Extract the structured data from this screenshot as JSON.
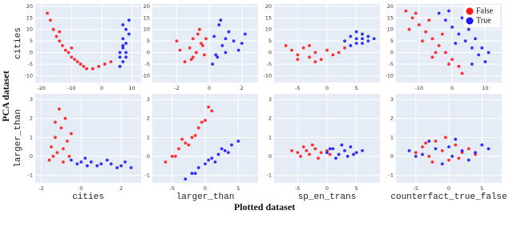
{
  "figure": {
    "xlabel": "Plotted dataset",
    "ylabel": "PCA dataset"
  },
  "chart_data": [
    {
      "type": "scatter",
      "ylabel": "cities",
      "xlim": [
        -22,
        13
      ],
      "ylim": [
        -13,
        21
      ],
      "xticks": [
        -20,
        -10,
        0,
        10
      ],
      "yticks": [
        -10,
        -5,
        0,
        5,
        10,
        15,
        20
      ],
      "grid": true,
      "series": [
        {
          "color": "#ff1a1a",
          "x": [
            -18,
            -17,
            -16,
            -15,
            -14,
            -13,
            -12,
            -11,
            -10,
            -9,
            -8,
            -7,
            -6,
            -5,
            -3,
            -1,
            1,
            3,
            -10,
            -14
          ],
          "values": [
            17,
            14,
            10,
            7,
            5,
            3,
            1,
            0,
            -2,
            -3,
            -4,
            -5,
            -6,
            -7,
            -7,
            -6,
            -5,
            -4,
            2,
            9
          ]
        },
        {
          "color": "#1a1aff",
          "x": [
            6,
            7,
            8,
            6,
            7,
            8,
            7,
            9,
            8,
            7,
            9,
            6,
            8,
            7
          ],
          "values": [
            -6,
            -4,
            -2,
            0,
            2,
            4,
            6,
            8,
            10,
            12,
            14,
            -2,
            0,
            3
          ]
        }
      ]
    },
    {
      "type": "scatter",
      "xlim": [
        -3.5,
        3
      ],
      "ylim": [
        -13,
        21
      ],
      "xticks": [
        -2,
        0,
        2
      ],
      "yticks": [
        -10,
        -5,
        0,
        5,
        10,
        15,
        20
      ],
      "grid": true,
      "series": [
        {
          "color": "#ff1a1a",
          "x": [
            -1.5,
            -1,
            -0.8,
            -1.2,
            -0.5,
            -1,
            -0.7,
            -0.3,
            -1.8,
            -0.4,
            -1.1,
            -0.6,
            -2,
            -0.2
          ],
          "values": [
            -4,
            -2,
            0,
            2,
            4,
            6,
            8,
            -1,
            1,
            3,
            -3,
            10,
            5,
            6
          ]
        },
        {
          "color": "#1a1aff",
          "x": [
            0.2,
            0.5,
            1,
            0.8,
            1.5,
            0.3,
            1.2,
            0.6,
            2,
            1.8,
            0.4,
            1,
            2.2,
            0.7
          ],
          "values": [
            -5,
            -2,
            0,
            3,
            5,
            7,
            9,
            12,
            4,
            1,
            -1,
            6,
            8,
            14
          ]
        }
      ]
    },
    {
      "type": "scatter",
      "xlim": [
        -9,
        9
      ],
      "ylim": [
        -13,
        21
      ],
      "xticks": [
        -5,
        0,
        5
      ],
      "yticks": [
        -10,
        -5,
        0,
        5,
        10,
        15,
        20
      ],
      "grid": true,
      "series": [
        {
          "color": "#ff1a1a",
          "x": [
            -7,
            -6,
            -5,
            -4,
            -3,
            -2,
            -1,
            0,
            1,
            2,
            -3,
            -5,
            3,
            -2
          ],
          "values": [
            3,
            1,
            -1,
            2,
            -2,
            0,
            -3,
            1,
            -1,
            0,
            3,
            -3,
            2,
            -4
          ]
        },
        {
          "color": "#1a1aff",
          "x": [
            3,
            4,
            5,
            6,
            7,
            5,
            6,
            4,
            7,
            5,
            6,
            8
          ],
          "values": [
            5,
            7,
            6,
            8,
            5,
            4,
            6,
            3,
            7,
            9,
            4,
            6
          ]
        }
      ]
    },
    {
      "type": "scatter",
      "legend": "top-right",
      "xlim": [
        -17,
        15
      ],
      "ylim": [
        -13,
        21
      ],
      "xticks": [
        -10,
        0,
        10
      ],
      "yticks": [
        -10,
        -5,
        0,
        5,
        10,
        15,
        20
      ],
      "grid": true,
      "series": [
        {
          "name": "False",
          "color": "#ff1a1a",
          "x": [
            -14,
            -12,
            -10,
            -8,
            -6,
            -4,
            -2,
            0,
            2,
            -13,
            -9,
            -5,
            -1,
            -11,
            -7,
            -3,
            -6,
            3
          ],
          "values": [
            18,
            15,
            12,
            9,
            6,
            3,
            0,
            -3,
            -6,
            10,
            5,
            0,
            -5,
            17,
            14,
            8,
            -2,
            -9
          ]
        },
        {
          "name": "True",
          "color": "#1a1aff",
          "x": [
            -4,
            -2,
            0,
            2,
            4,
            6,
            8,
            10,
            -1,
            3,
            5,
            7,
            9,
            1,
            6,
            11
          ],
          "values": [
            17,
            14,
            11,
            8,
            5,
            2,
            -1,
            -4,
            18,
            15,
            10,
            6,
            2,
            4,
            -5,
            0
          ]
        }
      ]
    },
    {
      "type": "scatter",
      "xlabel": "cities",
      "ylabel": "larger_than",
      "xlim": [
        -2.3,
        3
      ],
      "ylim": [
        -1.4,
        3.3
      ],
      "xticks": [
        -2,
        0,
        2
      ],
      "yticks": [
        -1,
        0,
        1,
        2,
        3
      ],
      "grid": true,
      "series": [
        {
          "color": "#ff1a1a",
          "x": [
            -1.5,
            -1.3,
            -1.2,
            -1,
            -0.9,
            -0.8,
            -0.7,
            -1.4,
            -1.1,
            -0.6,
            -1.3,
            -0.5,
            -1.6,
            -0.9
          ],
          "values": [
            0.5,
            1,
            0.2,
            1.5,
            0.4,
            2,
            0.8,
            0,
            2.5,
            0,
            1.8,
            1.2,
            -0.2,
            -0.3
          ]
        },
        {
          "color": "#1a1aff",
          "x": [
            -0.5,
            0,
            0.5,
            1,
            1.5,
            2,
            2.5,
            0.2,
            0.8,
            1.3,
            1.8,
            0.3,
            2.2,
            -0.2
          ],
          "values": [
            -0.2,
            -0.3,
            -0.3,
            -0.4,
            -0.4,
            -0.5,
            -0.6,
            -0.1,
            -0.5,
            -0.2,
            -0.6,
            -0.5,
            -0.3,
            -0.4
          ]
        }
      ]
    },
    {
      "type": "scatter",
      "xlabel": "larger_than",
      "xlim": [
        -8,
        8
      ],
      "ylim": [
        -1.4,
        3.3
      ],
      "xticks": [
        -5,
        0,
        5
      ],
      "yticks": [
        -1,
        0,
        1,
        2,
        3
      ],
      "grid": true,
      "series": [
        {
          "color": "#ff1a1a",
          "x": [
            -6,
            -5,
            -4,
            -3,
            -2,
            -1,
            0,
            1,
            -4.5,
            -2.5,
            -0.5,
            -3.5,
            -1.5,
            0.5
          ],
          "values": [
            -0.3,
            0,
            0.4,
            0.7,
            1,
            1.5,
            1.9,
            2.4,
            0,
            0.6,
            1.8,
            0.9,
            1.1,
            2.6
          ]
        },
        {
          "color": "#1a1aff",
          "x": [
            -3,
            -2,
            -1,
            0,
            1,
            2,
            3,
            4,
            5,
            -1.5,
            0.5,
            2.5,
            3.5,
            1.5
          ],
          "values": [
            -1.2,
            -0.9,
            -0.6,
            -0.4,
            -0.1,
            0.1,
            0.3,
            0.6,
            0.8,
            -0.9,
            -0.2,
            0.4,
            0.2,
            -0.3
          ]
        }
      ]
    },
    {
      "type": "scatter",
      "xlabel": "sp_en_trans",
      "xlim": [
        -9,
        9
      ],
      "ylim": [
        -1.4,
        3.3
      ],
      "xticks": [
        -5,
        0,
        5
      ],
      "yticks": [
        -1,
        0,
        1,
        2,
        3
      ],
      "grid": true,
      "series": [
        {
          "color": "#ff1a1a",
          "x": [
            -6,
            -5,
            -4,
            -3,
            -2,
            -1,
            0,
            -4.5,
            -2.5,
            -1.5,
            0.5,
            -3.5
          ],
          "values": [
            0.3,
            0.2,
            0.5,
            0.1,
            0.4,
            0.2,
            0.3,
            0,
            0.6,
            -0.1,
            0.1,
            0.3
          ]
        },
        {
          "color": "#1a1aff",
          "x": [
            0,
            1,
            2,
            3,
            4,
            5,
            6,
            1.5,
            3.5,
            2.5,
            4.5,
            0.5
          ],
          "values": [
            0.2,
            0.4,
            0.1,
            0.3,
            0.5,
            0.2,
            0.3,
            -0.1,
            0,
            0.6,
            0.1,
            0.4
          ]
        }
      ]
    },
    {
      "type": "scatter",
      "xlabel": "counterfact_true_false",
      "xlim": [
        -8,
        8
      ],
      "ylim": [
        -1.4,
        3.3
      ],
      "xticks": [
        -5,
        0,
        5
      ],
      "yticks": [
        -1,
        0,
        1,
        2,
        3
      ],
      "grid": true,
      "series": [
        {
          "color": "#ff1a1a",
          "x": [
            -5,
            -4,
            -3,
            -2,
            -1,
            0,
            1,
            2,
            3,
            -2.5,
            -0.5,
            1.5,
            4,
            -3.5
          ],
          "values": [
            0.2,
            0.5,
            0,
            0.8,
            0.3,
            -0.2,
            0.6,
            0.2,
            0.4,
            -0.3,
            1,
            -0.1,
            0.1,
            0.7
          ]
        },
        {
          "color": "#1a1aff",
          "x": [
            -6,
            -4,
            -2,
            0,
            2,
            4,
            6,
            -1,
            1,
            3,
            5,
            -3,
            0.5,
            -5
          ],
          "values": [
            0.3,
            0.1,
            0.4,
            0.5,
            0.3,
            0.2,
            0.4,
            -0.4,
            0.9,
            -0.2,
            0.6,
            0.8,
            0,
            0
          ]
        }
      ]
    }
  ]
}
